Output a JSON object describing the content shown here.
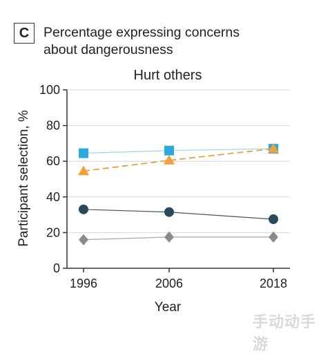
{
  "panel": {
    "badge": "C",
    "title_line1": "Percentage expressing concerns",
    "title_line2": "about dangerousness"
  },
  "watermark": "手动动手游",
  "chart_data": {
    "type": "line",
    "title": "Hurt others",
    "xlabel": "Year",
    "ylabel": "Participant selection, %",
    "x": [
      1996,
      2006,
      2018
    ],
    "xticks": [
      "1996",
      "2006",
      "2018"
    ],
    "ylim": [
      0,
      100
    ],
    "yticks": [
      0,
      20,
      40,
      60,
      80,
      100
    ],
    "grid": true,
    "series": [
      {
        "values": [
          64.5,
          66,
          67
        ],
        "color": "#2ea8e0",
        "line_color": "#9fd3ee",
        "marker": "square",
        "dashed": false
      },
      {
        "values": [
          54.5,
          60.5,
          67
        ],
        "color": "#f0a33a",
        "line_color": "#e8a040",
        "marker": "triangle",
        "dashed": true
      },
      {
        "values": [
          33,
          31.5,
          27.5
        ],
        "color": "#2a4a5c",
        "line_color": "#3e5666",
        "marker": "circle",
        "dashed": false
      },
      {
        "values": [
          16,
          17.5,
          17.5
        ],
        "color": "#8a8a8a",
        "line_color": "#a8a8a8",
        "marker": "diamond",
        "dashed": false
      }
    ]
  }
}
